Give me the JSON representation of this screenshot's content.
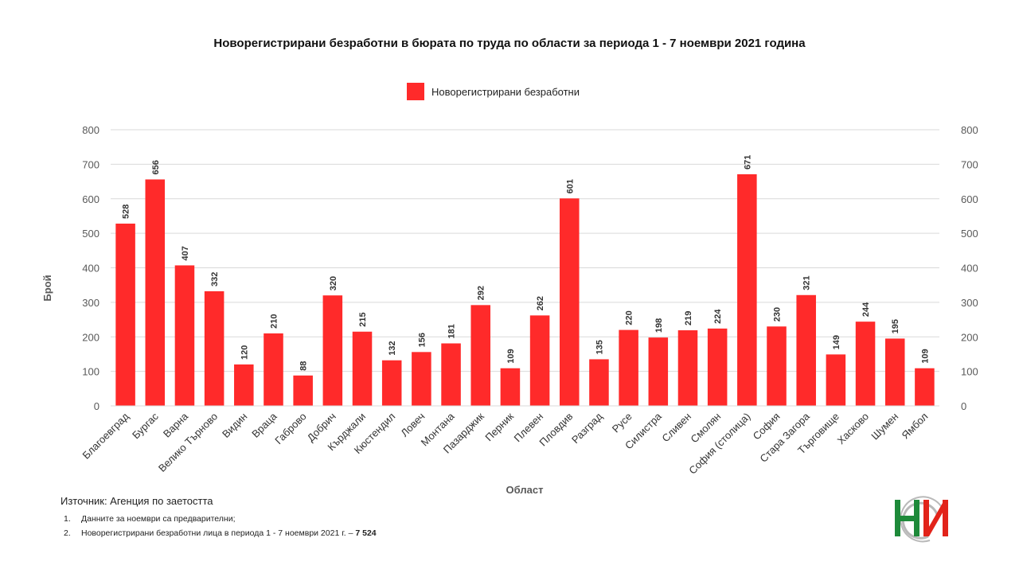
{
  "chart_data": {
    "type": "bar",
    "title": "Новорегистрирани безработни в бюрата по труда по области за периода 1 - 7 ноември 2021 година",
    "xlabel": "Област",
    "ylabel": "Брой",
    "ylim": [
      0,
      800
    ],
    "yticks": [
      "0",
      "100",
      "200",
      "300",
      "400",
      "500",
      "600",
      "700",
      "800"
    ],
    "grid": true,
    "legend_position": "top-center",
    "color": "#ff2a2a",
    "categories": [
      "Благоевград",
      "Бургас",
      "Варна",
      "Велико Търново",
      "Видин",
      "Враца",
      "Габрово",
      "Добрич",
      "Кърджали",
      "Кюстендил",
      "Ловеч",
      "Монтана",
      "Пазарджик",
      "Перник",
      "Плевен",
      "Пловдив",
      "Разград",
      "Русе",
      "Силистра",
      "Сливен",
      "Смолян",
      "София (столица)",
      "София",
      "Стара Загора",
      "Търговище",
      "Хасково",
      "Шумен",
      "Ямбол"
    ],
    "series": [
      {
        "name": "Новорегистрирани безработни",
        "values": [
          528,
          656,
          407,
          332,
          120,
          210,
          88,
          320,
          215,
          132,
          156,
          181,
          292,
          109,
          262,
          601,
          135,
          220,
          198,
          219,
          224,
          671,
          230,
          321,
          149,
          244,
          195,
          109
        ]
      }
    ]
  },
  "source": "Източник: Агенция по заетостта",
  "notes": {
    "n1": "1.",
    "t1": "Данните за ноември  са предварителни;",
    "n2": "2.",
    "t2": "Новорегистрирани  безработни лица в периода  1 - 7 ноември  2021 г. –",
    "t2_value": "7 524"
  }
}
